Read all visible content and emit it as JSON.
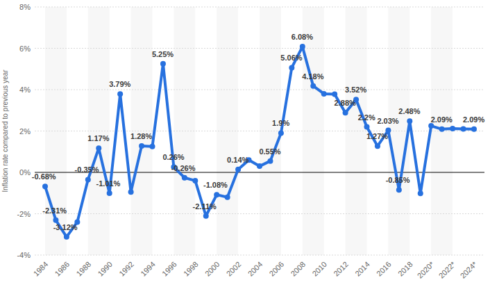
{
  "chart_data": {
    "type": "line",
    "y_label": "Inflation rate compared to previous year",
    "categories": [
      "1984",
      null,
      "1986",
      null,
      "1988",
      null,
      "1990",
      null,
      "1992",
      null,
      "1994",
      null,
      "1996",
      null,
      "1998",
      null,
      "2000",
      null,
      "2002",
      null,
      "2004",
      null,
      "2006",
      null,
      "2008",
      null,
      "2010",
      null,
      "2012",
      null,
      "2014",
      null,
      "2016",
      null,
      "2018",
      null,
      "2020*",
      null,
      "2022*",
      null,
      "2024*"
    ],
    "values": [
      -0.68,
      -2.31,
      -3.12,
      -2.4,
      -0.35,
      1.17,
      -1.01,
      3.79,
      -0.95,
      1.28,
      1.25,
      5.25,
      0.26,
      -0.26,
      -0.4,
      -2.11,
      -1.08,
      -1.2,
      0.14,
      0.6,
      0.3,
      0.55,
      1.9,
      5.06,
      6.08,
      4.18,
      3.8,
      3.78,
      2.88,
      3.52,
      2.2,
      1.27,
      2.03,
      -0.85,
      2.48,
      -1.02,
      2.25,
      2.09,
      2.12,
      2.1,
      2.09
    ],
    "value_labels": [
      "-0.68%",
      "-2.31%",
      "-3.12%",
      null,
      "-0.35%",
      "1.17%",
      "-1.01%",
      "3.79%",
      null,
      "1.28%",
      null,
      "5.25%",
      "0.26%",
      "-0.26%",
      null,
      "-2.11%",
      "-1.08%",
      null,
      "0.14%",
      null,
      null,
      "0.55%",
      "1.9%",
      "5.06%",
      "6.08%",
      "4.18%",
      null,
      null,
      "2.88%",
      "3.52%",
      "2.2%",
      "1.27%",
      "2.03%",
      "-0.85%",
      "2.48%",
      null,
      null,
      "2.09%",
      null,
      null,
      "2.09%"
    ],
    "color": "#2771df",
    "marker": "circle",
    "ylim": [
      -4,
      8
    ],
    "yticks": [
      {
        "value": -4,
        "label": "-4%"
      },
      {
        "value": -2,
        "label": "-2%"
      },
      {
        "value": 0,
        "label": "0%"
      },
      {
        "value": 2,
        "label": "2%"
      },
      {
        "value": 4,
        "label": "4%"
      },
      {
        "value": 6,
        "label": "6%"
      },
      {
        "value": 8,
        "label": "8%"
      }
    ],
    "grid": true,
    "data_labels": true
  }
}
